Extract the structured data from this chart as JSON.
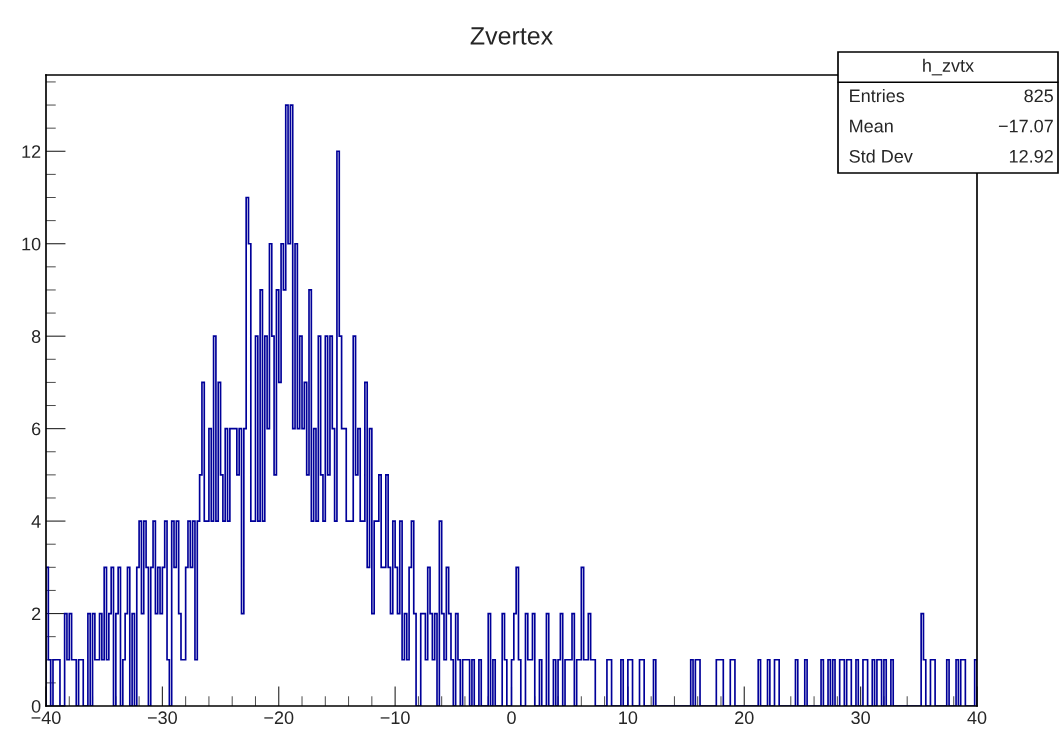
{
  "chart_data": {
    "type": "histogram",
    "title": "Zvertex",
    "color": "#000099",
    "bins": [
      -40,
      -39.8,
      -39.6,
      -39.4,
      -39.2,
      -39,
      -38.8,
      -38.6,
      -38.4,
      -38.2,
      -38,
      -37.8,
      -37.6,
      -37.4,
      -37.2,
      -37,
      -36.8,
      -36.6,
      -36.4,
      -36.2,
      -36,
      -35.8,
      -35.6,
      -35.4,
      -35.2,
      -35,
      -34.8,
      -34.6,
      -34.4,
      -34.2,
      -34,
      -33.8,
      -33.6,
      -33.4,
      -33.2,
      -33,
      -32.8,
      -32.6,
      -32.4,
      -32.2,
      -32,
      -31.8,
      -31.6,
      -31.4,
      -31.2,
      -31,
      -30.8,
      -30.6,
      -30.4,
      -30.2,
      -30,
      -29.8,
      -29.6,
      -29.4,
      -29.2,
      -29,
      -28.8,
      -28.6,
      -28.4,
      -28.2,
      -28,
      -27.8,
      -27.6,
      -27.4,
      -27.2,
      -27,
      -26.8,
      -26.6,
      -26.4,
      -26.2,
      -26,
      -25.8,
      -25.6,
      -25.4,
      -25.2,
      -25,
      -24.8,
      -24.6,
      -24.4,
      -24.2,
      -24,
      -23.8,
      -23.6,
      -23.4,
      -23.2,
      -23,
      -22.8,
      -22.6,
      -22.4,
      -22.2,
      -22,
      -21.8,
      -21.6,
      -21.4,
      -21.2,
      -21,
      -20.8,
      -20.6,
      -20.4,
      -20.2,
      -20,
      -19.8,
      -19.6,
      -19.4,
      -19.2,
      -19,
      -18.8,
      -18.6,
      -18.4,
      -18.2,
      -18,
      -17.8,
      -17.6,
      -17.4,
      -17.2,
      -17,
      -16.8,
      -16.6,
      -16.4,
      -16.2,
      -16,
      -15.8,
      -15.6,
      -15.4,
      -15.2,
      -15,
      -14.8,
      -14.6,
      -14.4,
      -14.2,
      -14,
      -13.8,
      -13.6,
      -13.4,
      -13.2,
      -13,
      -12.8,
      -12.6,
      -12.4,
      -12.2,
      -12,
      -11.8,
      -11.6,
      -11.4,
      -11.2,
      -11,
      -10.8,
      -10.6,
      -10.4,
      -10.2,
      -10,
      -9.8,
      -9.6,
      -9.4,
      -9.2,
      -9,
      -8.8,
      -8.6,
      -8.4,
      -8.2,
      -8,
      -7.8,
      -7.6,
      -7.4,
      -7.2,
      -7,
      -6.8,
      -6.6,
      -6.4,
      -6.2,
      -6,
      -5.8,
      -5.6,
      -5.4,
      -5.2,
      -5,
      -4.8,
      -4.6,
      -4.4,
      -4.2,
      -4,
      -3.8,
      -3.6,
      -3.4,
      -3.2,
      -3,
      -2.8,
      -2.6,
      -2.4,
      -2.2,
      -2,
      -1.8,
      -1.6,
      -1.4,
      -1.2,
      -1,
      -0.8,
      -0.6,
      -0.4,
      -0.2,
      0,
      0.2,
      0.4,
      0.6,
      0.8,
      1,
      1.2,
      1.4,
      1.6,
      1.8,
      2,
      2.2,
      2.4,
      2.6,
      2.8,
      3,
      3.2,
      3.4,
      3.6,
      3.8,
      4,
      4.2,
      4.4,
      4.6,
      4.8,
      5,
      5.2,
      5.4,
      5.6,
      5.8,
      6,
      6.2,
      6.4,
      6.6,
      6.8,
      7,
      7.2,
      7.4,
      7.6,
      7.8,
      8,
      8.2,
      8.4,
      8.6,
      8.8,
      9,
      9.2,
      9.4,
      9.6,
      9.8,
      10,
      10.2,
      10.4,
      10.6,
      10.8,
      11,
      11.2,
      11.4,
      11.6,
      11.8,
      12,
      12.2,
      12.4,
      12.6,
      12.8,
      13,
      13.2,
      13.4,
      13.6,
      13.8,
      14,
      14.2,
      14.4,
      14.6,
      14.8,
      15,
      15.2,
      15.4,
      15.6,
      15.8,
      16,
      16.2,
      16.4,
      16.6,
      16.8,
      17,
      17.2,
      17.4,
      17.6,
      17.8,
      18,
      18.2,
      18.4,
      18.6,
      18.8,
      19,
      19.2,
      19.4,
      19.6,
      19.8,
      20,
      20.2,
      20.4,
      20.6,
      20.8,
      21,
      21.2,
      21.4,
      21.6,
      21.8,
      22,
      22.2,
      22.4,
      22.6,
      22.8,
      23,
      23.2,
      23.4,
      23.6,
      23.8,
      24,
      24.2,
      24.4,
      24.6,
      24.8,
      25,
      25.2,
      25.4,
      25.6,
      25.8,
      26,
      26.2,
      26.4,
      26.6,
      26.8,
      27,
      27.2,
      27.4,
      27.6,
      27.8,
      28,
      28.2,
      28.4,
      28.6,
      28.8,
      29,
      29.2,
      29.4,
      29.6,
      29.8,
      30,
      30.2,
      30.4,
      30.6,
      30.8,
      31,
      31.2,
      31.4,
      31.6,
      31.8,
      32,
      32.2,
      32.4,
      32.6,
      32.8,
      33,
      33.2,
      33.4,
      33.6,
      33.8,
      34,
      34.2,
      34.4,
      34.6,
      34.8,
      35,
      35.2,
      35.4,
      35.6,
      35.8,
      36,
      36.2,
      36.4,
      36.6,
      36.8,
      37,
      37.2,
      37.4,
      37.6,
      37.8,
      38,
      38.2,
      38.4,
      38.6,
      38.8,
      39,
      39.2,
      39.4,
      39.6,
      39.8,
      40
    ],
    "values": [
      3,
      1,
      0,
      1,
      1,
      1,
      0,
      0,
      2,
      1,
      2,
      1,
      1,
      0,
      1,
      1,
      0,
      0,
      2,
      0,
      2,
      1,
      1,
      2,
      1,
      3,
      1,
      2,
      3,
      0,
      2,
      3,
      0,
      1,
      2,
      3,
      0,
      2,
      0,
      3,
      4,
      2,
      4,
      3,
      0,
      3,
      4,
      2,
      3,
      2,
      3,
      4,
      1,
      0,
      4,
      3,
      4,
      2,
      1,
      1,
      3,
      4,
      3,
      4,
      1,
      4,
      5,
      7,
      4,
      4,
      6,
      4,
      8,
      4,
      7,
      5,
      4,
      6,
      4,
      6,
      6,
      6,
      5,
      6,
      2,
      6,
      11,
      10,
      4,
      4,
      8,
      4,
      9,
      4,
      8,
      6,
      10,
      8,
      5,
      9,
      7,
      10,
      9,
      13,
      10,
      13,
      6,
      10,
      6,
      8,
      6,
      7,
      5,
      9,
      4,
      6,
      4,
      8,
      5,
      4,
      8,
      5,
      8,
      6,
      4,
      12,
      8,
      6,
      6,
      4,
      4,
      4,
      8,
      5,
      6,
      4,
      4,
      7,
      3,
      6,
      2,
      4,
      4,
      5,
      3,
      3,
      5,
      3,
      2,
      4,
      3,
      2,
      4,
      1,
      2,
      1,
      3,
      4,
      2,
      0,
      0,
      2,
      2,
      1,
      3,
      2,
      1,
      2,
      0,
      4,
      2,
      1,
      3,
      2,
      1,
      0,
      2,
      1,
      0,
      1,
      1,
      1,
      0,
      1,
      0,
      0,
      1,
      0,
      0,
      0,
      2,
      0,
      1,
      0,
      0,
      0,
      2,
      1,
      0,
      0,
      1,
      2,
      3,
      1,
      0,
      0,
      2,
      1,
      1,
      2,
      0,
      0,
      1,
      0,
      0,
      2,
      0,
      0,
      1,
      0,
      1,
      2,
      0,
      1,
      1,
      1,
      2,
      0,
      1,
      1,
      3,
      1,
      1,
      2,
      1,
      1,
      0,
      0,
      0,
      0,
      0,
      1,
      1,
      0,
      0,
      0,
      0,
      1,
      0,
      0,
      1,
      1,
      0,
      0,
      0,
      1,
      1,
      0,
      0,
      0,
      0,
      1,
      0,
      0,
      0,
      0,
      0,
      0,
      0,
      0,
      0,
      0,
      0,
      0,
      0,
      0,
      0,
      1,
      0,
      1,
      1,
      0,
      0,
      0,
      0,
      0,
      0,
      0,
      1,
      1,
      1,
      0,
      0,
      0,
      1,
      1,
      0,
      0,
      0,
      0,
      0,
      0,
      0,
      0,
      0,
      0,
      1,
      0,
      0,
      0,
      1,
      0,
      0,
      1,
      1,
      0,
      0,
      0,
      0,
      0,
      0,
      0,
      1,
      0,
      0,
      0,
      1,
      0,
      0,
      0,
      0,
      0,
      0,
      1,
      0,
      0,
      1,
      0,
      1,
      0,
      0,
      1,
      1,
      0,
      1,
      1,
      0,
      0,
      1,
      0,
      0,
      1,
      1,
      0,
      0,
      1,
      0,
      1,
      1,
      0,
      1,
      0,
      0,
      1,
      0,
      0,
      0,
      0,
      0,
      0,
      0,
      0,
      0,
      0,
      0,
      0,
      2,
      1,
      0,
      0,
      1,
      1,
      0,
      0,
      0,
      0,
      0,
      1,
      0,
      0,
      0,
      1,
      0,
      1,
      1,
      0,
      0,
      0,
      0,
      1
    ],
    "xlim": [
      -40,
      40
    ],
    "ylim": [
      0,
      13.65
    ],
    "xticks": [
      {
        "value": -40,
        "label": "−40"
      },
      {
        "value": -30,
        "label": "−30"
      },
      {
        "value": -20,
        "label": "−20"
      },
      {
        "value": -10,
        "label": "−10"
      },
      0,
      10,
      20,
      30,
      40
    ],
    "yticks": [
      0,
      2,
      4,
      6,
      8,
      10,
      12
    ],
    "grid": false,
    "annotations": [
      "h_zvtx",
      "Entries",
      "825",
      "Mean",
      "−17.07",
      "Std Dev",
      "12.92"
    ]
  }
}
